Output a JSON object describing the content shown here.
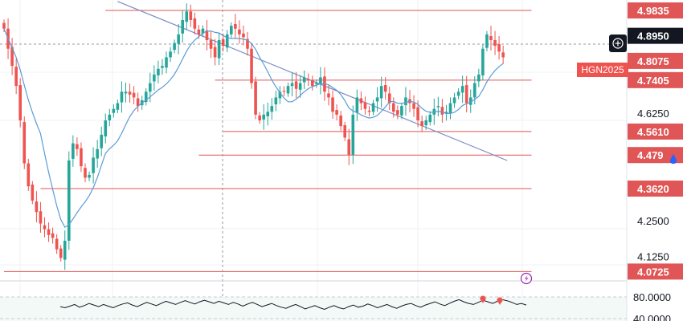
{
  "chart_data": {
    "type": "candlestick",
    "symbol_tag": "HGN2025",
    "colors": {
      "up": "#26a69a",
      "down": "#ef5350",
      "ma": "#5b9bd5",
      "level": "#e05555",
      "trend": "#7b8cc7",
      "dark_label": "#131722"
    },
    "y_range": [
      4.04,
      5.02
    ],
    "price_axis_ticks": [
      {
        "label": "4.2500",
        "value": 4.25
      },
      {
        "label": "4.1250",
        "value": 4.125
      },
      {
        "label": "4.6250",
        "value": 4.625
      }
    ],
    "level_labels": [
      {
        "label": "4.9835",
        "value": 4.9835,
        "style": "red"
      },
      {
        "label": "4.8950",
        "value": 4.895,
        "style": "dark"
      },
      {
        "label": "4.8075",
        "value": 4.8075,
        "style": "red"
      },
      {
        "label": "4.7405",
        "value": 4.7405,
        "style": "red"
      },
      {
        "label": "4.5610",
        "value": 4.561,
        "style": "red"
      },
      {
        "label": "4.479",
        "value": 4.479,
        "style": "red"
      },
      {
        "label": "4.3620",
        "value": 4.362,
        "style": "red"
      },
      {
        "label": "4.0725",
        "value": 4.0725,
        "style": "red"
      }
    ],
    "oscillator_ticks": [
      {
        "label": "80.0000",
        "value": 80
      },
      {
        "label": "40.0000",
        "value": 40
      }
    ],
    "closes": [
      4.92,
      4.85,
      4.79,
      4.72,
      4.6,
      4.45,
      4.37,
      4.32,
      4.28,
      4.24,
      4.22,
      4.2,
      4.19,
      4.15,
      4.12,
      4.18,
      4.46,
      4.52,
      4.5,
      4.44,
      4.4,
      4.41,
      4.47,
      4.5,
      4.55,
      4.6,
      4.62,
      4.64,
      4.66,
      4.7,
      4.7,
      4.69,
      4.68,
      4.65,
      4.67,
      4.7,
      4.73,
      4.76,
      4.78,
      4.79,
      4.82,
      4.84,
      4.87,
      4.9,
      4.95,
      4.98,
      4.95,
      4.92,
      4.9,
      4.92,
      4.88,
      4.85,
      4.82,
      4.88,
      4.86,
      4.9,
      4.93,
      4.92,
      4.9,
      4.89,
      4.85,
      4.73,
      4.62,
      4.6,
      4.62,
      4.63,
      4.65,
      4.68,
      4.7,
      4.7,
      4.72,
      4.73,
      4.71,
      4.73,
      4.75,
      4.74,
      4.72,
      4.73,
      4.75,
      4.7,
      4.68,
      4.63,
      4.62,
      4.58,
      4.54,
      4.48,
      4.62,
      4.68,
      4.66,
      4.64,
      4.63,
      4.66,
      4.68,
      4.72,
      4.7,
      4.66,
      4.63,
      4.62,
      4.65,
      4.68,
      4.66,
      4.64,
      4.6,
      4.58,
      4.6,
      4.62,
      4.64,
      4.65,
      4.62,
      4.63,
      4.66,
      4.68,
      4.7,
      4.72,
      4.66,
      4.68,
      4.73,
      4.76,
      4.85,
      4.9,
      4.88,
      4.86,
      4.84,
      4.82
    ],
    "oscillator": [
      62,
      60,
      63,
      66,
      61,
      64,
      68,
      65,
      62,
      66,
      63,
      60,
      64,
      67,
      69,
      65,
      62,
      66,
      70,
      67,
      64,
      68,
      72,
      69,
      66,
      70,
      73,
      70,
      67,
      71,
      74,
      71,
      68,
      72,
      69,
      66,
      70,
      67,
      63,
      67,
      70,
      66,
      62,
      65,
      68,
      64,
      61,
      59,
      63,
      66,
      62,
      58,
      61,
      64,
      60,
      57,
      61,
      64,
      60,
      58,
      62,
      65,
      61,
      63,
      67,
      64,
      60,
      63,
      66,
      62,
      59,
      63,
      66,
      68,
      64,
      61,
      65,
      68,
      71,
      67,
      64,
      68,
      72,
      75,
      71,
      68,
      66,
      70,
      74,
      71,
      68,
      72,
      75,
      73,
      70,
      66,
      68,
      65
    ],
    "trendline": [
      {
        "i": 28,
        "y": 5.015
      },
      {
        "i": 124,
        "y": 4.46
      }
    ],
    "segments": [
      {
        "y": 4.9835,
        "i0": 25,
        "i1": 130
      },
      {
        "y": 4.7405,
        "i0": 52,
        "i1": 130
      },
      {
        "y": 4.561,
        "i0": 54,
        "i1": 130
      },
      {
        "y": 4.479,
        "i0": 48,
        "i1": 130
      },
      {
        "y": 4.362,
        "i0": 9,
        "i1": 130
      },
      {
        "y": 4.0725,
        "i0": 0,
        "i1": 130
      }
    ]
  }
}
